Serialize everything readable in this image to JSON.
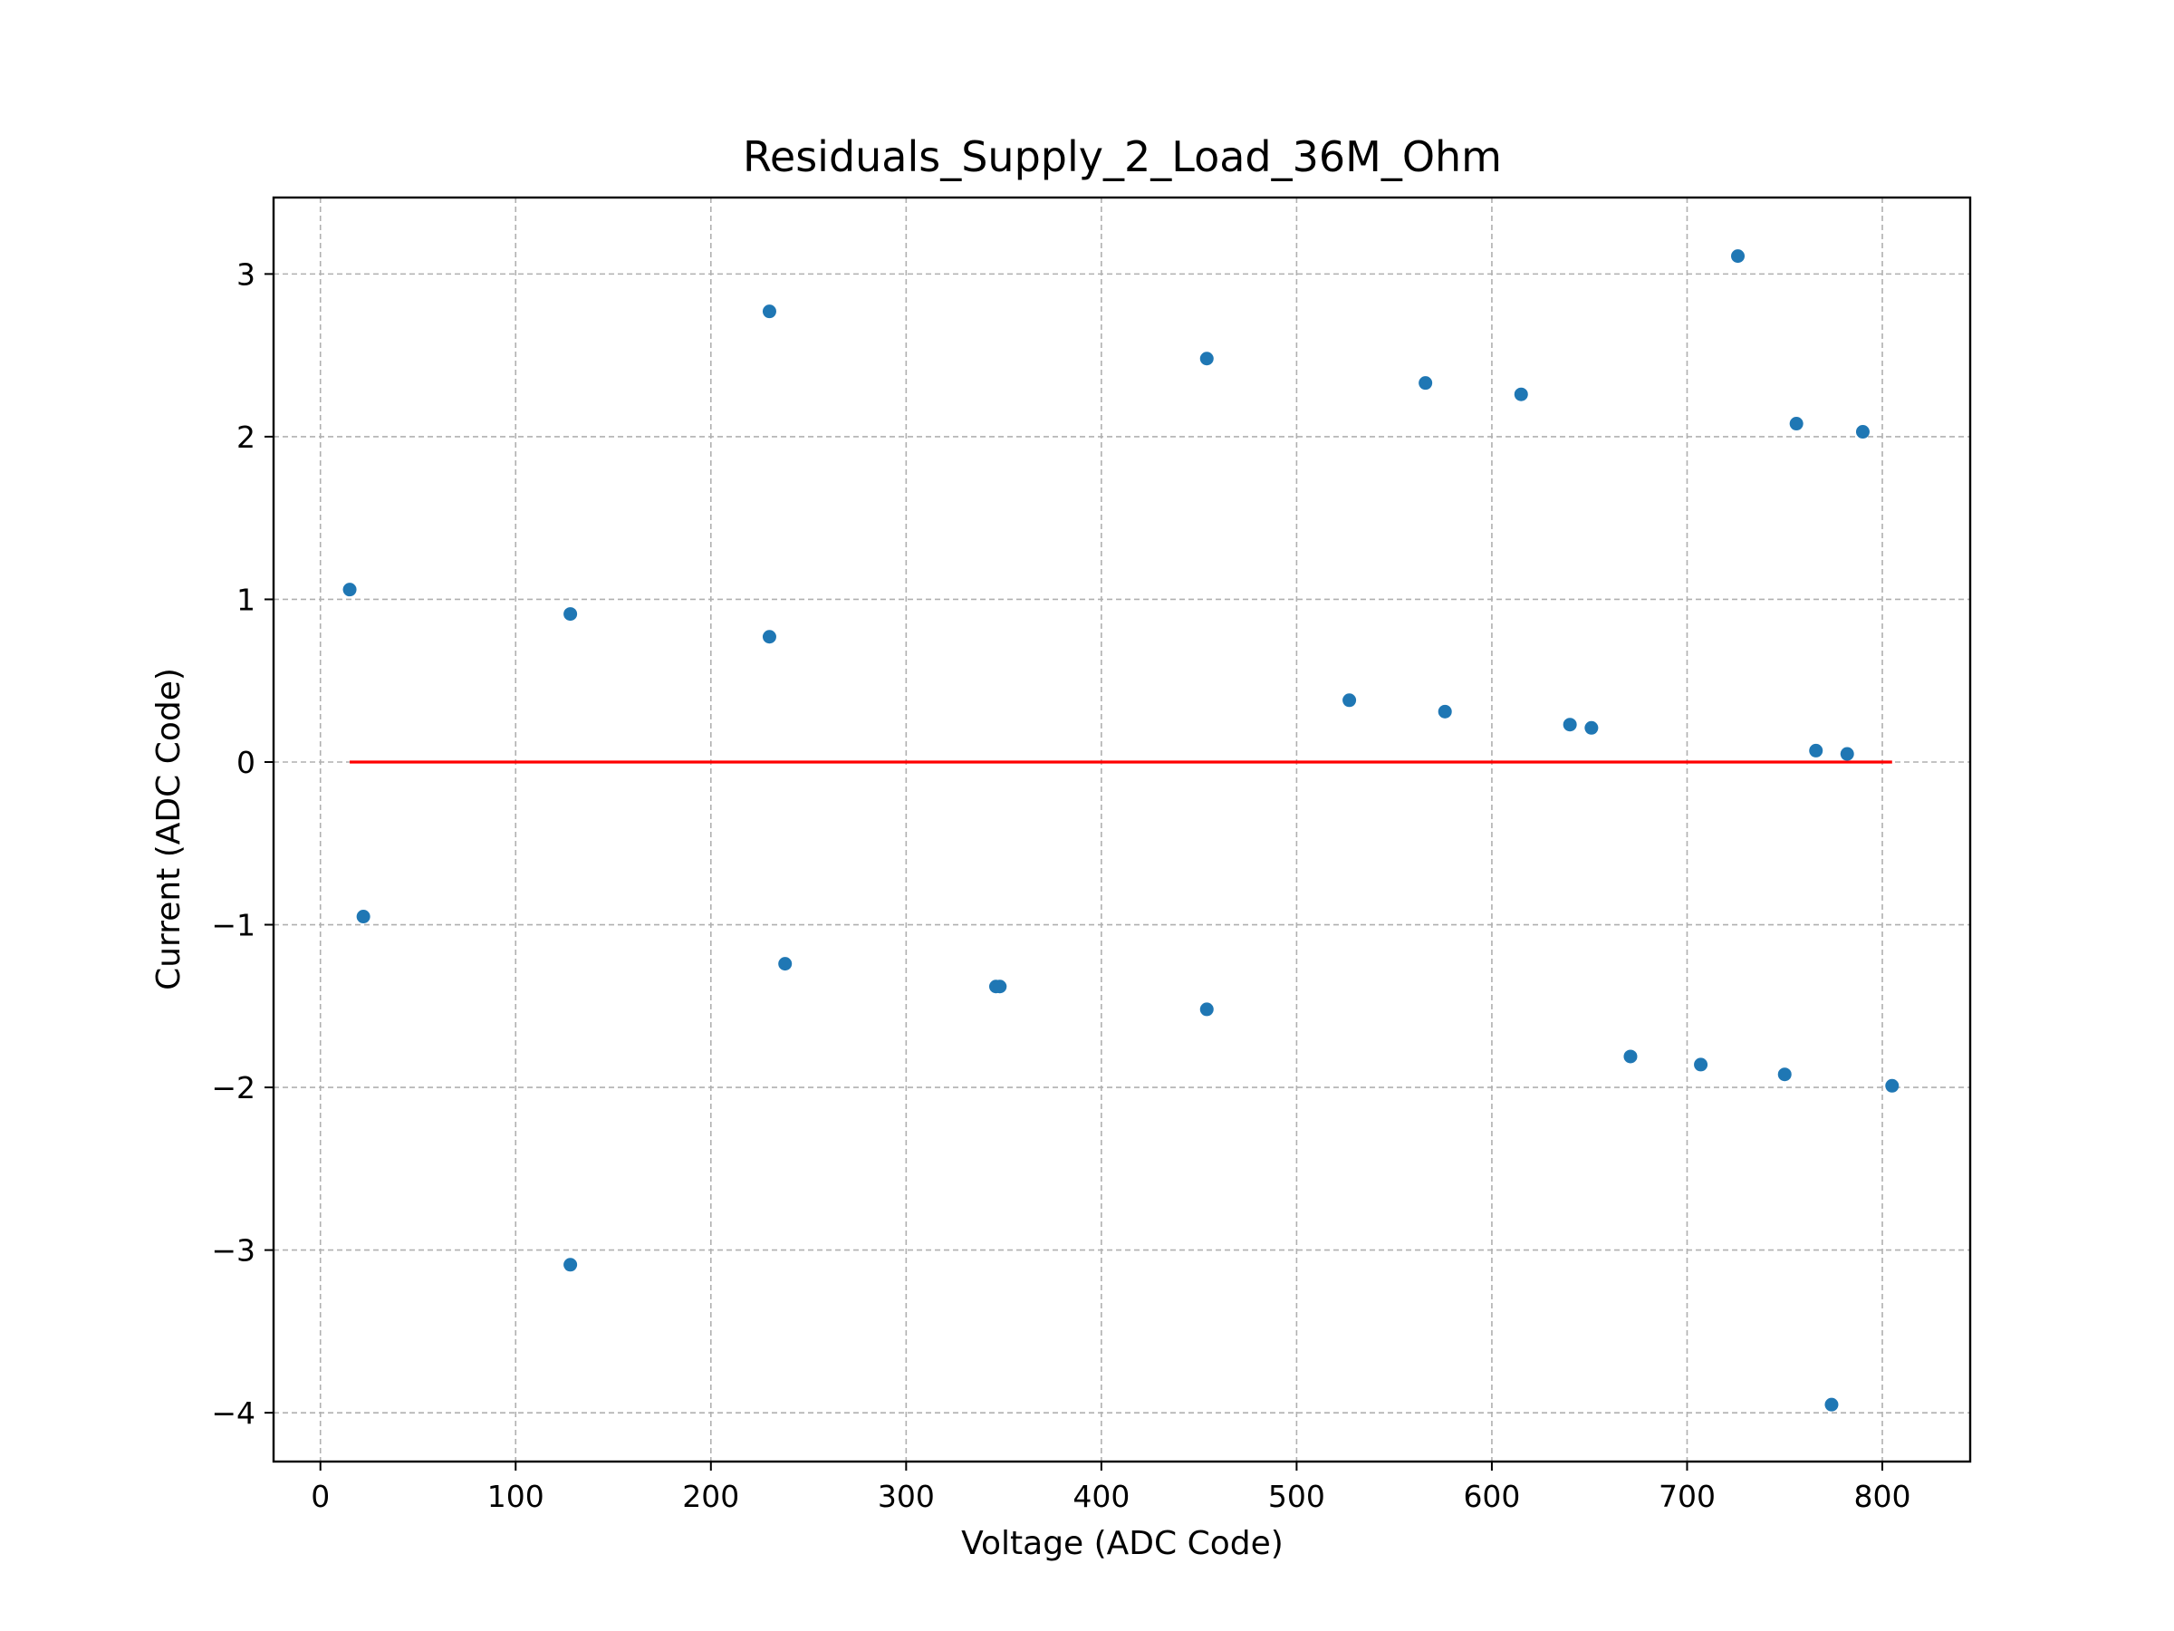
{
  "chart_data": {
    "type": "scatter",
    "title": "Residuals_Supply_2_Load_36M_Ohm",
    "xlabel": "Voltage (ADC Code)",
    "ylabel": "Current (ADC Code)",
    "xlim": [
      -24,
      845
    ],
    "ylim": [
      -4.3,
      3.47
    ],
    "xticks": [
      0,
      100,
      200,
      300,
      400,
      500,
      600,
      700,
      800
    ],
    "yticks": [
      -4,
      -3,
      -2,
      -1,
      0,
      1,
      2,
      3
    ],
    "xtick_labels": [
      "0",
      "100",
      "200",
      "300",
      "400",
      "500",
      "600",
      "700",
      "800"
    ],
    "ytick_labels": [
      "−4",
      "−3",
      "−2",
      "−1",
      "0",
      "1",
      "2",
      "3"
    ],
    "grid": true,
    "series": [
      {
        "color": "#1f77b4",
        "marker": "circle",
        "points": [
          [
            15,
            1.06
          ],
          [
            22,
            -0.95
          ],
          [
            128,
            0.91
          ],
          [
            128,
            -3.09
          ],
          [
            230,
            2.77
          ],
          [
            230,
            0.77
          ],
          [
            238,
            -1.24
          ],
          [
            346,
            -1.38
          ],
          [
            348,
            -1.38
          ],
          [
            454,
            2.48
          ],
          [
            454,
            -1.52
          ],
          [
            527,
            0.38
          ],
          [
            566,
            2.33
          ],
          [
            576,
            0.31
          ],
          [
            615,
            2.26
          ],
          [
            640,
            0.23
          ],
          [
            651,
            0.21
          ],
          [
            671,
            -1.81
          ],
          [
            707,
            -1.86
          ],
          [
            726,
            3.11
          ],
          [
            750,
            -1.92
          ],
          [
            756,
            2.08
          ],
          [
            766,
            0.07
          ],
          [
            774,
            -3.95
          ],
          [
            782,
            0.05
          ],
          [
            790,
            2.03
          ],
          [
            805,
            -1.99
          ]
        ]
      },
      {
        "color": "#ff0000",
        "type": "line",
        "points": [
          [
            15,
            0
          ],
          [
            805,
            0
          ]
        ]
      }
    ]
  }
}
